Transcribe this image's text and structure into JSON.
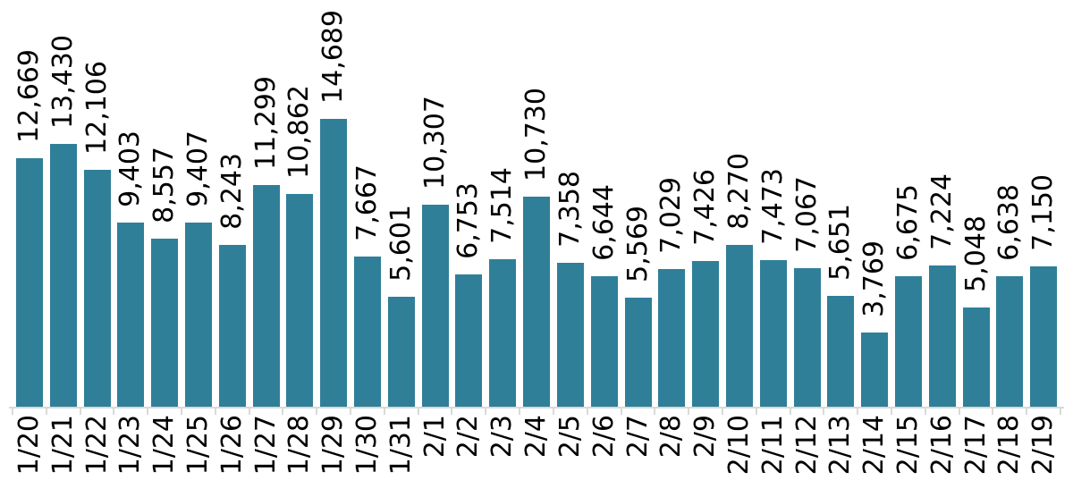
{
  "chart_data": {
    "type": "bar",
    "title": "",
    "xlabel": "",
    "ylabel": "",
    "categories": [
      "1/20",
      "1/21",
      "1/22",
      "1/23",
      "1/24",
      "1/25",
      "1/26",
      "1/27",
      "1/28",
      "1/29",
      "1/30",
      "1/31",
      "2/1",
      "2/2",
      "2/3",
      "2/4",
      "2/5",
      "2/6",
      "2/7",
      "2/8",
      "2/9",
      "2/10",
      "2/11",
      "2/12",
      "2/13",
      "2/14",
      "2/15",
      "2/16",
      "2/17",
      "2/18",
      "2/19"
    ],
    "values": [
      12669,
      13430,
      12106,
      9403,
      8557,
      9407,
      8243,
      11299,
      10862,
      14689,
      7667,
      5601,
      10307,
      6753,
      7514,
      10730,
      7358,
      6644,
      5569,
      7029,
      7426,
      8270,
      7473,
      7067,
      5651,
      3769,
      6675,
      7224,
      5048,
      6638,
      7150
    ],
    "value_labels": [
      "12,669",
      "13,430",
      "12,106",
      "9,403",
      "8,557",
      "9,407",
      "8,243",
      "11,299",
      "10,862",
      "14,689",
      "7,667",
      "5,601",
      "10,307",
      "6,753",
      "7,514",
      "10,730",
      "7,358",
      "6,644",
      "5,569",
      "7,029",
      "7,426",
      "8,270",
      "7,473",
      "7,067",
      "5,651",
      "3,769",
      "6,675",
      "7,224",
      "5,048",
      "6,638",
      "7,150"
    ],
    "ylim": [
      0,
      14689
    ],
    "grid": false,
    "legend": null,
    "data_labels_rotated": true,
    "x_labels_rotated": true,
    "bar_color": "#2f7f98",
    "axis_color": "#d9d9d9",
    "text_color": "#000000",
    "background_color": "#ffffff"
  }
}
